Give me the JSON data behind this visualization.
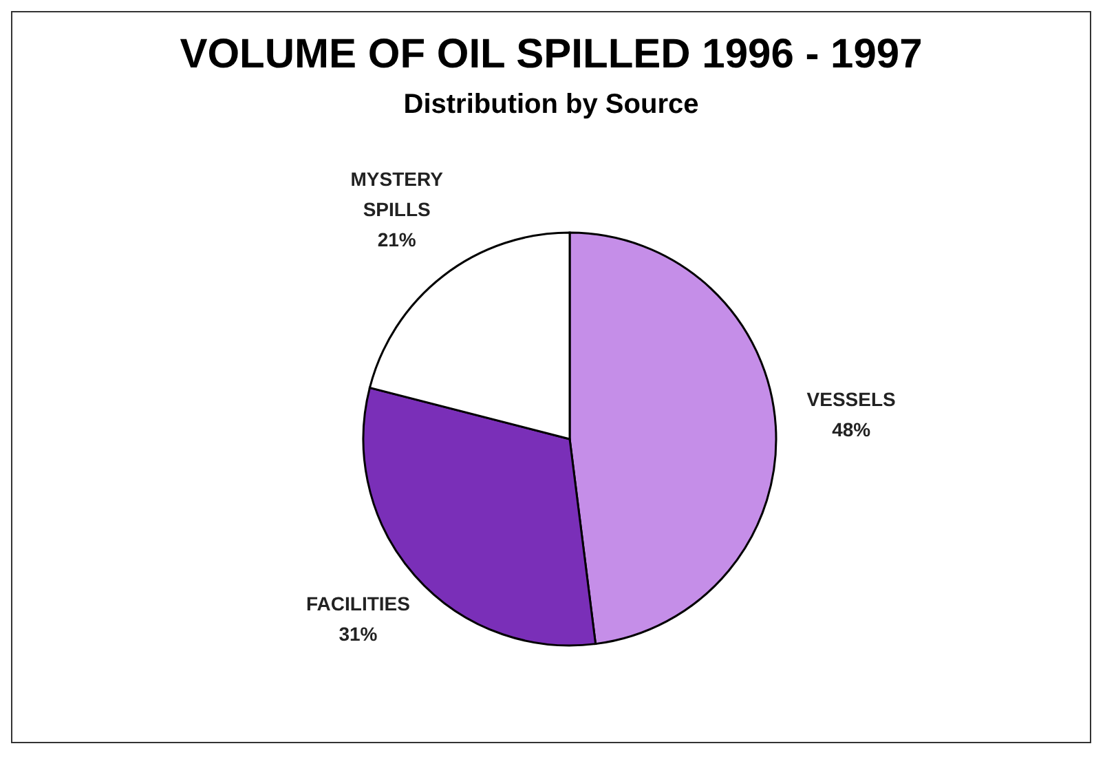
{
  "chart_data": {
    "type": "pie",
    "title": "VOLUME OF OIL SPILLED 1996 - 1997",
    "subtitle": "Distribution by Source",
    "categories": [
      "VESSELS",
      "FACILITIES",
      "MYSTERY SPILLS"
    ],
    "values": [
      48,
      31,
      21
    ],
    "colors": [
      "#c58ee8",
      "#7a2fb8",
      "#ffffff"
    ],
    "value_labels": [
      "48%",
      "31%",
      "21%"
    ]
  }
}
